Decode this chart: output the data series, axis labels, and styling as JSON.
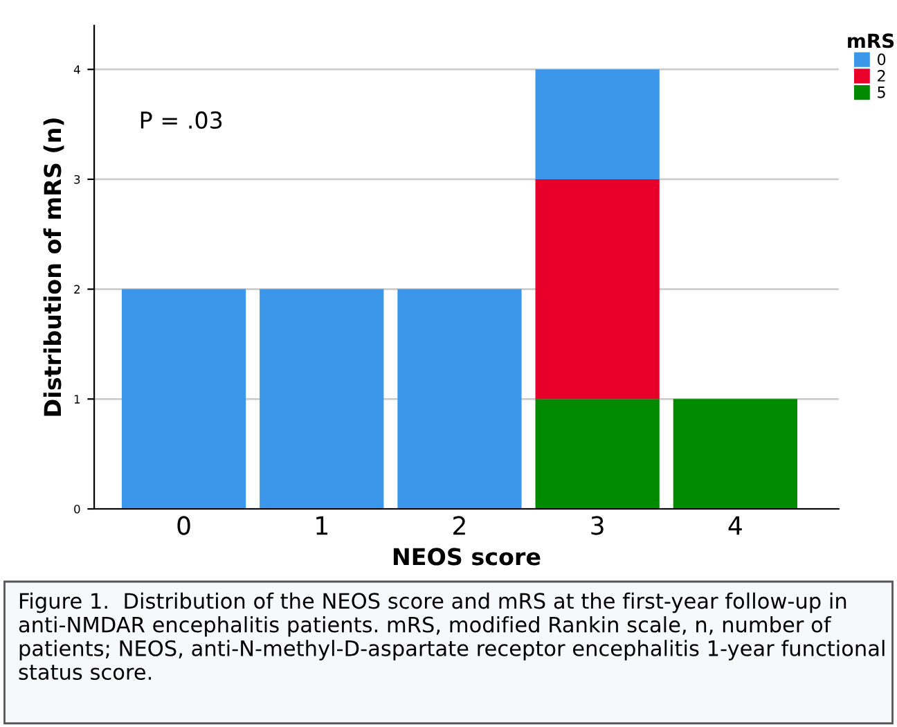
{
  "chart_data": {
    "type": "bar",
    "stacked": true,
    "xlabel": "NEOS score",
    "ylabel": "Distribution of mRS (n)",
    "legend_title": "mRS",
    "categories": [
      "0",
      "1",
      "2",
      "3",
      "4"
    ],
    "series": [
      {
        "name": "5",
        "color": "#008a00",
        "values": [
          0,
          0,
          0,
          1,
          1
        ]
      },
      {
        "name": "2",
        "color": "#e8002b",
        "values": [
          0,
          0,
          0,
          2,
          0
        ]
      },
      {
        "name": "0",
        "color": "#3c97ea",
        "values": [
          2,
          2,
          2,
          1,
          0
        ]
      }
    ],
    "ylim": [
      0,
      4.4
    ],
    "yticks": [
      0,
      1,
      2,
      3,
      4
    ],
    "grid": "y",
    "legend": "top right",
    "annotations": [
      "P = .03",
      "Figure 1.  Distribution of the NEOS score and mRS at the first-year follow-up in anti-NMDAR encephalitis patients. mRS, modified Rankin scale, n, number of patients; NEOS, anti-N-methyl-D-aspartate receptor encephalitis 1-year functional status score."
    ]
  }
}
